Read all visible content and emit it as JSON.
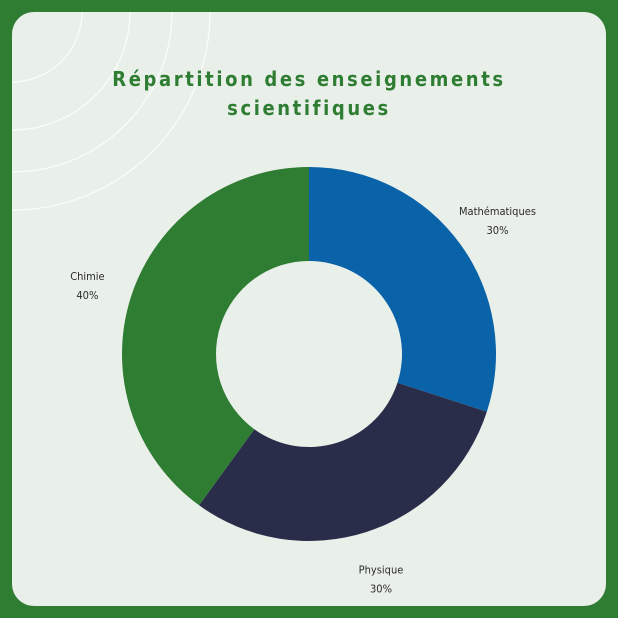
{
  "chart_data": {
    "type": "pie",
    "title_lines": [
      "Répartition des enseignements",
      "scientifiques"
    ],
    "slices": [
      {
        "label": "Mathématiques",
        "value": 30,
        "value_label": "30%",
        "color": "#0a62a8"
      },
      {
        "label": "Physique",
        "value": 30,
        "value_label": "30%",
        "color": "#2a2d4a"
      },
      {
        "label": "Chimie",
        "value": 40,
        "value_label": "40%",
        "color": "#2e7d32"
      }
    ],
    "donut": true,
    "legend": "none"
  },
  "colors": {
    "background": "#2e7d32",
    "card": "#e9efe9",
    "title": "#2e7d32"
  }
}
